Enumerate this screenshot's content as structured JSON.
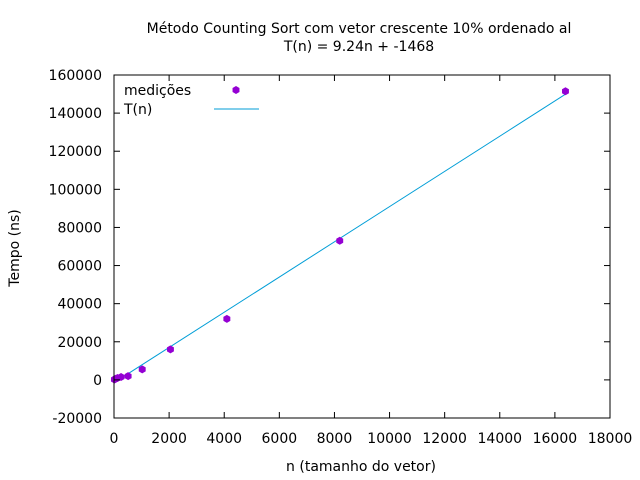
{
  "chart_data": {
    "type": "scatter",
    "title": "Método Counting Sort com vetor crescente 10% ordenado al",
    "subtitle": "T(n) = 9.24n + -1468",
    "xlabel": "n (tamanho do vetor)",
    "ylabel": "Tempo (ns)",
    "xlim": [
      0,
      18000
    ],
    "ylim": [
      -20000,
      160000
    ],
    "x_ticks": [
      0,
      2000,
      4000,
      6000,
      8000,
      10000,
      12000,
      14000,
      16000,
      18000
    ],
    "y_ticks": [
      -20000,
      0,
      20000,
      40000,
      60000,
      80000,
      100000,
      120000,
      140000,
      160000
    ],
    "grid": false,
    "legend_position": "top-left",
    "series": [
      {
        "name": "medições",
        "kind": "points",
        "color": "#9400d3",
        "x": [
          16,
          32,
          64,
          128,
          256,
          512,
          1024,
          2048,
          4096,
          8192,
          16384
        ],
        "y": [
          200,
          350,
          600,
          1000,
          1500,
          2000,
          5500,
          16000,
          32000,
          73000,
          151500
        ]
      },
      {
        "name": "T(n)",
        "kind": "line",
        "color": "#009ed7",
        "x": [
          16,
          16384
        ],
        "y": [
          -1320,
          149920
        ]
      }
    ]
  }
}
